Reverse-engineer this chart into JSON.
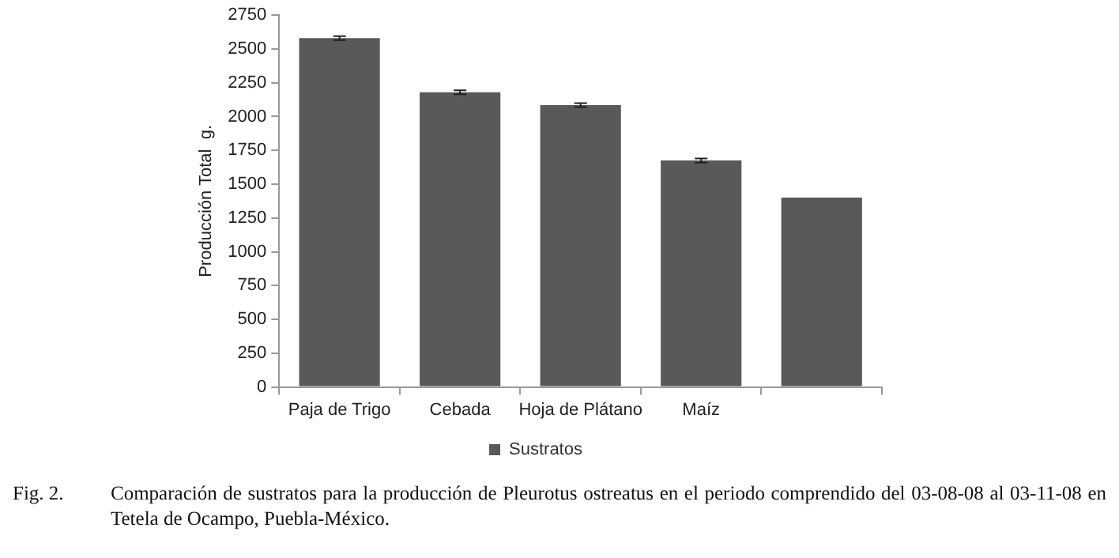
{
  "chart_data": {
    "type": "bar",
    "ylabel": "Producción Total  g.",
    "categories": [
      "Paja de Trigo",
      "Cebada",
      "Hoja de Plátano",
      "Maíz",
      null
    ],
    "series": [
      {
        "name": "Sustratos",
        "color": "#595959",
        "values": [
          2580,
          2180,
          2085,
          1675,
          1400
        ],
        "errors": [
          15,
          15,
          15,
          15,
          null
        ]
      }
    ],
    "ylim": [
      0,
      2750
    ],
    "yticks": [
      0,
      250,
      500,
      750,
      1000,
      1250,
      1500,
      1750,
      2000,
      2250,
      2500,
      2750
    ],
    "grid": false,
    "legend": "bottom",
    "annotations": [
      "Fig. 2.",
      "Comparación de sustratos para la producción de Pleurotus ostreatus en el periodo comprendido del 03-08-08 al 03-11-08 en Tetela de Ocampo, Puebla-México."
    ]
  }
}
